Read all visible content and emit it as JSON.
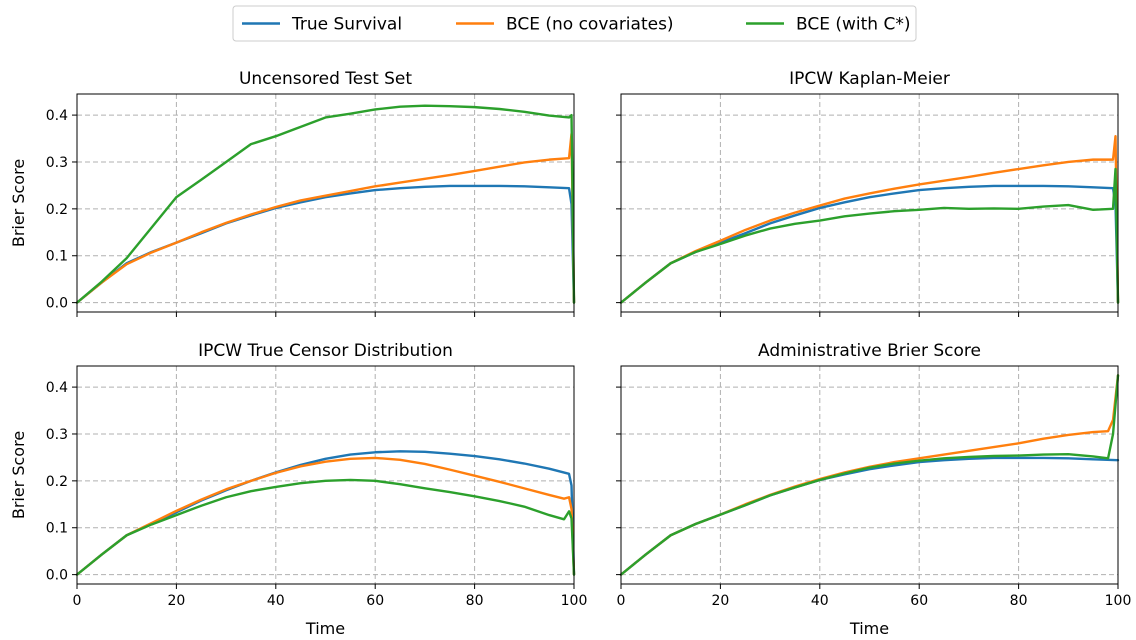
{
  "chart_data": {
    "type": "line",
    "legend": {
      "placement": "top-center",
      "entries": [
        {
          "name": "True Survival",
          "color": "#1f77b4"
        },
        {
          "name": "BCE (no covariates)",
          "color": "#ff7f0e"
        },
        {
          "name": "BCE (with C*)",
          "color": "#2ca02c"
        }
      ]
    },
    "shared": {
      "xlabel": "Time",
      "ylabel": "Brier Score",
      "xlim": [
        0,
        100
      ],
      "ylim": [
        -0.02,
        0.445
      ],
      "xticks": [
        0,
        20,
        40,
        60,
        80,
        100
      ],
      "yticks": [
        0.0,
        0.1,
        0.2,
        0.3,
        0.4
      ],
      "xtick_labels": [
        "0",
        "20",
        "40",
        "60",
        "80",
        "100"
      ],
      "ytick_labels": [
        "0.0",
        "0.1",
        "0.2",
        "0.3",
        "0.4"
      ],
      "grid": true
    },
    "panels": [
      {
        "title": "Uncensored Test Set",
        "series": [
          {
            "name": "True Survival",
            "color": "#1f77b4",
            "x": [
              0,
              5,
              10,
              15,
              20,
              25,
              30,
              35,
              40,
              45,
              50,
              55,
              60,
              65,
              70,
              75,
              80,
              85,
              90,
              95,
              99,
              99.5,
              100
            ],
            "y": [
              0,
              0.043,
              0.084,
              0.108,
              0.128,
              0.148,
              0.169,
              0.186,
              0.202,
              0.214,
              0.225,
              0.233,
              0.24,
              0.244,
              0.247,
              0.249,
              0.249,
              0.249,
              0.248,
              0.246,
              0.244,
              0.21,
              0.0
            ]
          },
          {
            "name": "BCE (no covariates)",
            "color": "#ff7f0e",
            "x": [
              0,
              5,
              10,
              15,
              20,
              25,
              30,
              35,
              40,
              45,
              50,
              55,
              60,
              65,
              70,
              75,
              80,
              85,
              90,
              95,
              99,
              99.5,
              100
            ],
            "y": [
              0,
              0.043,
              0.082,
              0.107,
              0.128,
              0.15,
              0.17,
              0.188,
              0.204,
              0.218,
              0.228,
              0.238,
              0.248,
              0.256,
              0.264,
              0.272,
              0.281,
              0.29,
              0.299,
              0.305,
              0.308,
              0.36,
              0.0
            ]
          },
          {
            "name": "BCE (with C*)",
            "color": "#2ca02c",
            "x": [
              0,
              5,
              10,
              15,
              20,
              25,
              30,
              35,
              40,
              45,
              50,
              55,
              60,
              65,
              70,
              75,
              80,
              85,
              90,
              95,
              99,
              99.5,
              100
            ],
            "y": [
              0,
              0.045,
              0.095,
              0.16,
              0.225,
              0.262,
              0.3,
              0.338,
              0.355,
              0.375,
              0.395,
              0.403,
              0.412,
              0.418,
              0.42,
              0.419,
              0.417,
              0.413,
              0.407,
              0.399,
              0.395,
              0.4,
              0.0
            ]
          }
        ]
      },
      {
        "title": "IPCW Kaplan-Meier",
        "series": [
          {
            "name": "True Survival",
            "color": "#1f77b4",
            "x": [
              0,
              5,
              10,
              15,
              20,
              25,
              30,
              35,
              40,
              45,
              50,
              55,
              60,
              65,
              70,
              75,
              80,
              85,
              90,
              95,
              99,
              99.5,
              100
            ],
            "y": [
              0,
              0.043,
              0.084,
              0.108,
              0.128,
              0.148,
              0.169,
              0.186,
              0.202,
              0.214,
              0.225,
              0.233,
              0.24,
              0.244,
              0.247,
              0.249,
              0.249,
              0.249,
              0.248,
              0.246,
              0.244,
              0.21,
              0.0
            ]
          },
          {
            "name": "BCE (no covariates)",
            "color": "#ff7f0e",
            "x": [
              0,
              5,
              10,
              15,
              20,
              25,
              30,
              35,
              40,
              45,
              50,
              55,
              60,
              65,
              70,
              75,
              80,
              85,
              90,
              95,
              99,
              99.5,
              100
            ],
            "y": [
              0,
              0.043,
              0.084,
              0.11,
              0.132,
              0.155,
              0.175,
              0.192,
              0.207,
              0.222,
              0.233,
              0.243,
              0.252,
              0.26,
              0.268,
              0.277,
              0.285,
              0.293,
              0.3,
              0.305,
              0.305,
              0.355,
              0.0
            ]
          },
          {
            "name": "BCE (with C*)",
            "color": "#2ca02c",
            "x": [
              0,
              5,
              10,
              15,
              20,
              25,
              30,
              35,
              40,
              45,
              50,
              55,
              60,
              65,
              70,
              75,
              80,
              85,
              90,
              95,
              99,
              99.5,
              100
            ],
            "y": [
              0,
              0.043,
              0.084,
              0.108,
              0.125,
              0.143,
              0.158,
              0.168,
              0.175,
              0.184,
              0.19,
              0.195,
              0.198,
              0.202,
              0.2,
              0.201,
              0.2,
              0.205,
              0.208,
              0.198,
              0.2,
              0.285,
              0.0
            ]
          }
        ]
      },
      {
        "title": "IPCW True Censor Distribution",
        "series": [
          {
            "name": "True Survival",
            "color": "#1f77b4",
            "x": [
              0,
              5,
              10,
              15,
              20,
              25,
              30,
              35,
              40,
              45,
              50,
              55,
              60,
              65,
              70,
              75,
              80,
              85,
              90,
              95,
              99,
              99.5,
              100
            ],
            "y": [
              0,
              0.043,
              0.084,
              0.108,
              0.133,
              0.158,
              0.18,
              0.2,
              0.218,
              0.234,
              0.247,
              0.256,
              0.261,
              0.263,
              0.262,
              0.258,
              0.253,
              0.246,
              0.237,
              0.226,
              0.215,
              0.19,
              0.0
            ]
          },
          {
            "name": "BCE (no covariates)",
            "color": "#ff7f0e",
            "x": [
              0,
              5,
              10,
              15,
              20,
              25,
              30,
              35,
              40,
              45,
              50,
              55,
              60,
              65,
              70,
              75,
              80,
              85,
              90,
              95,
              98,
              99,
              99.5,
              100
            ],
            "y": [
              0,
              0.043,
              0.084,
              0.11,
              0.136,
              0.16,
              0.182,
              0.2,
              0.217,
              0.231,
              0.241,
              0.247,
              0.249,
              0.245,
              0.236,
              0.224,
              0.211,
              0.198,
              0.184,
              0.17,
              0.162,
              0.165,
              0.14,
              0.0
            ]
          },
          {
            "name": "BCE (with C*)",
            "color": "#2ca02c",
            "x": [
              0,
              5,
              10,
              15,
              20,
              25,
              30,
              35,
              40,
              45,
              50,
              55,
              60,
              65,
              70,
              75,
              80,
              85,
              90,
              95,
              98,
              99,
              99.5,
              100
            ],
            "y": [
              0,
              0.043,
              0.084,
              0.107,
              0.127,
              0.147,
              0.165,
              0.178,
              0.187,
              0.195,
              0.2,
              0.202,
              0.2,
              0.193,
              0.184,
              0.176,
              0.167,
              0.157,
              0.145,
              0.127,
              0.118,
              0.135,
              0.12,
              0.0
            ]
          }
        ]
      },
      {
        "title": "Administrative Brier Score",
        "series": [
          {
            "name": "True Survival",
            "color": "#1f77b4",
            "x": [
              0,
              5,
              10,
              15,
              20,
              25,
              30,
              35,
              40,
              45,
              50,
              55,
              60,
              65,
              70,
              75,
              80,
              85,
              90,
              95,
              100
            ],
            "y": [
              0,
              0.043,
              0.084,
              0.108,
              0.128,
              0.148,
              0.169,
              0.186,
              0.202,
              0.214,
              0.225,
              0.233,
              0.24,
              0.244,
              0.247,
              0.249,
              0.249,
              0.249,
              0.248,
              0.246,
              0.244
            ]
          },
          {
            "name": "BCE (no covariates)",
            "color": "#ff7f0e",
            "x": [
              0,
              5,
              10,
              15,
              20,
              25,
              30,
              35,
              40,
              45,
              50,
              55,
              60,
              65,
              70,
              75,
              80,
              85,
              90,
              95,
              98,
              99,
              100
            ],
            "y": [
              0,
              0.043,
              0.084,
              0.108,
              0.128,
              0.15,
              0.17,
              0.188,
              0.204,
              0.218,
              0.23,
              0.24,
              0.248,
              0.256,
              0.264,
              0.272,
              0.28,
              0.29,
              0.298,
              0.304,
              0.306,
              0.33,
              0.425
            ]
          },
          {
            "name": "BCE (with C*)",
            "color": "#2ca02c",
            "x": [
              0,
              5,
              10,
              15,
              20,
              25,
              30,
              35,
              40,
              45,
              50,
              55,
              60,
              65,
              70,
              75,
              80,
              85,
              90,
              95,
              98,
              99,
              100
            ],
            "y": [
              0,
              0.043,
              0.084,
              0.108,
              0.128,
              0.148,
              0.169,
              0.186,
              0.202,
              0.216,
              0.228,
              0.237,
              0.243,
              0.248,
              0.251,
              0.253,
              0.254,
              0.256,
              0.257,
              0.252,
              0.248,
              0.3,
              0.425
            ]
          }
        ]
      }
    ]
  }
}
